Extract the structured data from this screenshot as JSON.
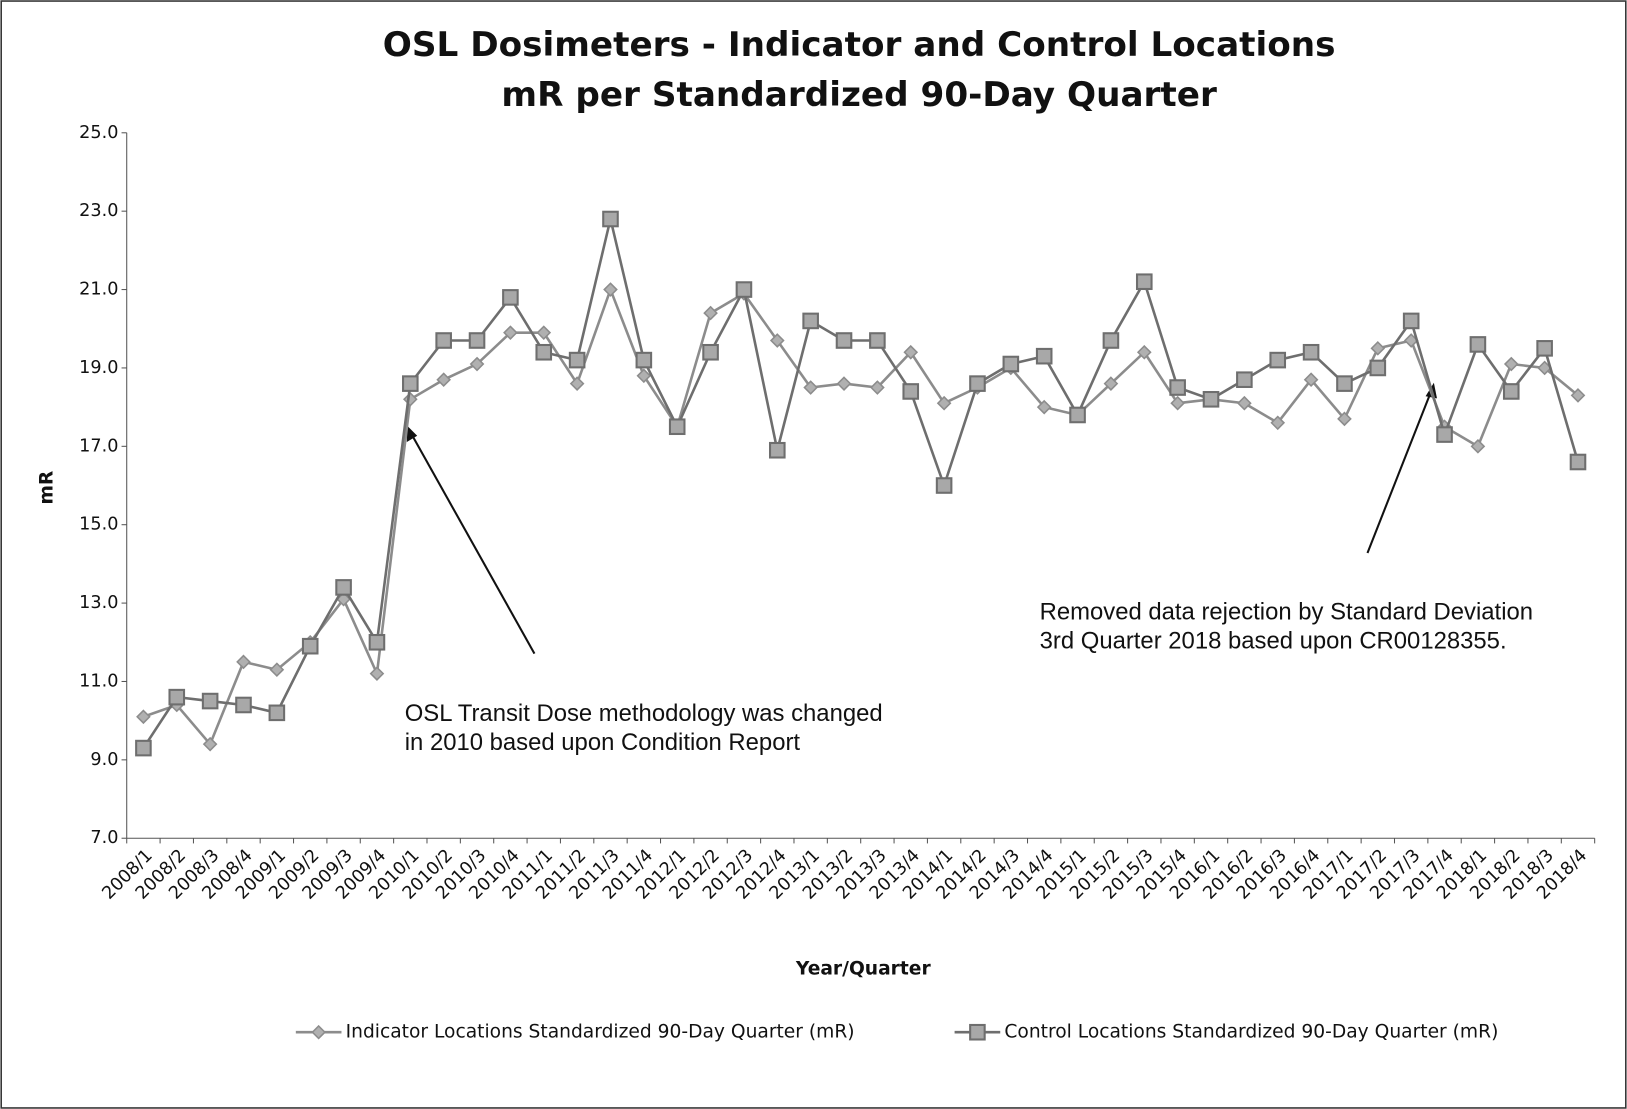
{
  "chart_data": {
    "type": "line",
    "title": [
      "OSL Dosimeters - Indicator and Control Locations",
      "mR per Standardized 90-Day Quarter"
    ],
    "y_label": "mR",
    "x_label": "Year/Quarter",
    "categories": [
      "2008/1",
      "2008/2",
      "2008/3",
      "2008/4",
      "2009/1",
      "2009/2",
      "2009/3",
      "2009/4",
      "2010/1",
      "2010/2",
      "2010/3",
      "2010/4",
      "2011/1",
      "2011/2",
      "2011/3",
      "2011/4",
      "2012/1",
      "2012/2",
      "2012/3",
      "2012/4",
      "2013/1",
      "2013/2",
      "2013/3",
      "2013/4",
      "2014/1",
      "2014/2",
      "2014/3",
      "2014/4",
      "2015/1",
      "2015/2",
      "2015/3",
      "2015/4",
      "2016/1",
      "2016/2",
      "2016/3",
      "2016/4",
      "2017/1",
      "2017/2",
      "2017/3",
      "2017/4",
      "2018/1",
      "2018/2",
      "2018/3",
      "2018/4"
    ],
    "series": [
      {
        "name": "Indicator Locations Standardized 90-Day Quarter (mR)",
        "color": "#8c8c8c",
        "marker": "diamond",
        "values": [
          10.1,
          10.4,
          9.4,
          11.5,
          11.3,
          12.0,
          13.1,
          11.2,
          18.2,
          18.7,
          19.1,
          19.9,
          19.9,
          18.6,
          21.0,
          18.8,
          17.5,
          20.4,
          20.9,
          19.7,
          18.5,
          18.6,
          18.5,
          19.4,
          18.1,
          18.5,
          19.0,
          18.0,
          17.8,
          18.6,
          19.4,
          18.1,
          18.2,
          18.1,
          17.6,
          18.7,
          17.7,
          19.5,
          19.7,
          17.5,
          17.0,
          19.1,
          19.0,
          18.3
        ]
      },
      {
        "name": "Control Locations Standardized 90-Day Quarter (mR)",
        "color": "#6e6e6e",
        "marker": "square",
        "values": [
          9.3,
          10.6,
          10.5,
          10.4,
          10.2,
          11.9,
          13.4,
          12.0,
          18.6,
          19.7,
          19.7,
          20.8,
          19.4,
          19.2,
          22.8,
          19.2,
          17.5,
          19.4,
          21.0,
          16.9,
          20.2,
          19.7,
          19.7,
          18.4,
          16.0,
          18.6,
          19.1,
          19.3,
          17.8,
          19.7,
          21.2,
          18.5,
          18.2,
          18.7,
          19.2,
          19.4,
          18.6,
          19.0,
          20.2,
          17.3,
          19.6,
          18.4,
          19.5,
          16.6
        ]
      }
    ],
    "ylim": [
      7,
      25
    ],
    "yticks": [
      {
        "value": 7,
        "label": "7.0"
      },
      {
        "value": 9,
        "label": "9.0"
      },
      {
        "value": 11,
        "label": "11.0"
      },
      {
        "value": 13,
        "label": "13.0"
      },
      {
        "value": 15,
        "label": "15.0"
      },
      {
        "value": 17,
        "label": "17.0"
      },
      {
        "value": 19,
        "label": "19.0"
      },
      {
        "value": 21,
        "label": "21.0"
      },
      {
        "value": 23,
        "label": "23.0"
      },
      {
        "value": 25,
        "label": "25.0"
      }
    ],
    "legend": "bottom",
    "annotations": [
      {
        "lines": [
          "OSL Transit Dose methodology was changed",
          "in 2010 based upon Condition Report"
        ]
      },
      {
        "lines": [
          "Removed data rejection by Standard Deviation",
          "3rd Quarter 2018 based upon CR00128355."
        ]
      }
    ]
  }
}
